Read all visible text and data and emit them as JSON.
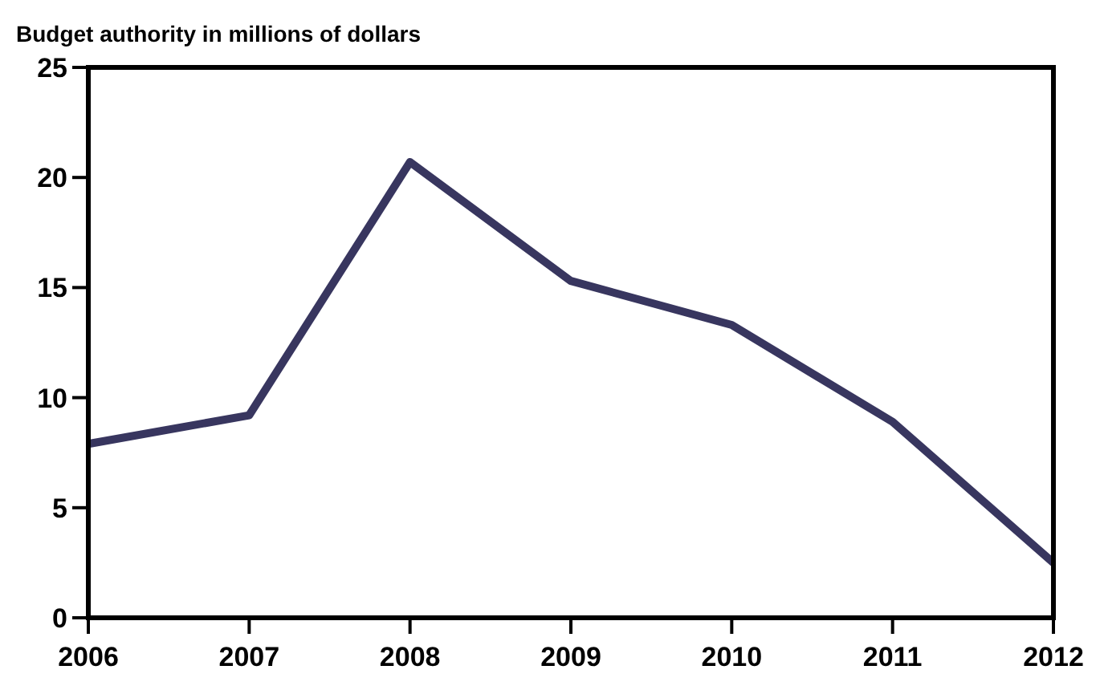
{
  "chart_data": {
    "type": "line",
    "ylabel": "Budget authority in millions of dollars",
    "x": [
      2006,
      2007,
      2008,
      2009,
      2010,
      2011,
      2012
    ],
    "series": [
      {
        "color": "#38365f",
        "values": [
          7.9,
          9.2,
          20.7,
          15.3,
          13.3,
          8.9,
          2.5
        ]
      }
    ],
    "xlim": [
      2006,
      2012
    ],
    "xticks": [
      2006,
      2007,
      2008,
      2009,
      2010,
      2011,
      2012
    ],
    "ylim": [
      0,
      25
    ],
    "yticks": [
      0,
      5,
      10,
      15,
      20,
      25
    ],
    "grid": false,
    "line_style": "solid"
  }
}
